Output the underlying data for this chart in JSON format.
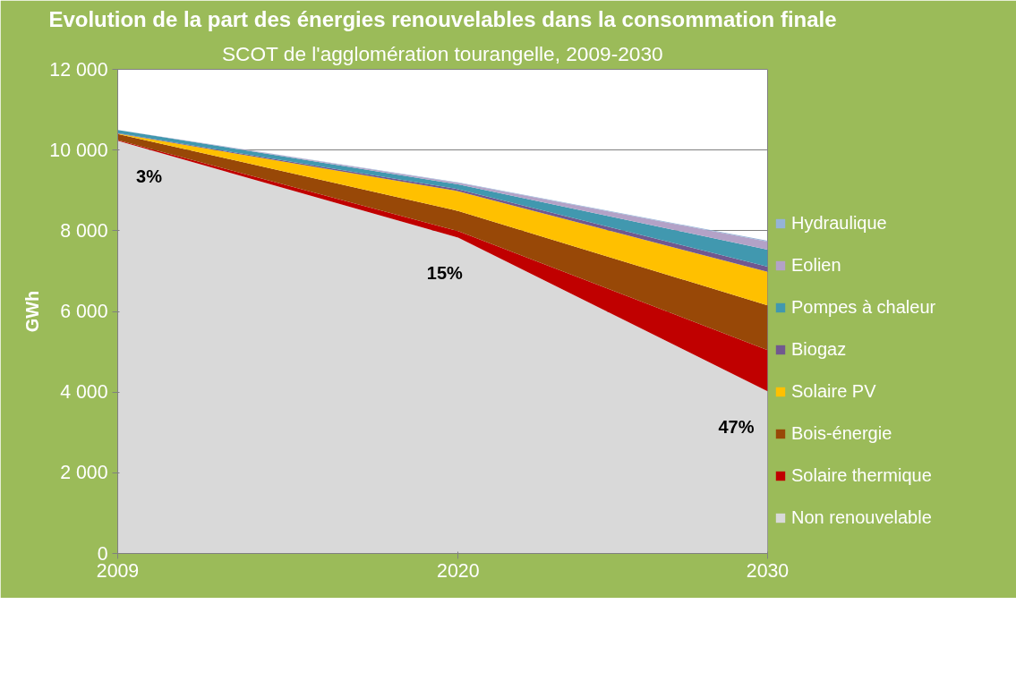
{
  "chart_data": {
    "type": "area",
    "stacked": true,
    "title": "Evolution de la part des énergies renouvelables dans la consommation finale",
    "subtitle": "SCOT de l'agglomération tourangelle, 2009-2030",
    "ylabel": "GWh",
    "x": [
      2009,
      2020,
      2030
    ],
    "xlim": [
      2009,
      2030
    ],
    "xticks": [
      2009,
      2020,
      2030
    ],
    "ylim": [
      0,
      12000
    ],
    "yticks": [
      {
        "value": 0,
        "label": "0"
      },
      {
        "value": 2000,
        "label": "2 000"
      },
      {
        "value": 4000,
        "label": "4 000"
      },
      {
        "value": 6000,
        "label": "6 000"
      },
      {
        "value": 8000,
        "label": "8 000"
      },
      {
        "value": 10000,
        "label": "10 000"
      },
      {
        "value": 12000,
        "label": "12 000"
      }
    ],
    "grid": "y",
    "legend": "right",
    "series": [
      {
        "name": "Non renouvelable",
        "color": "#d9d9d9",
        "values": [
          10230,
          7830,
          4020
        ]
      },
      {
        "name": "Solaire thermique",
        "color": "#c00000",
        "values": [
          20,
          160,
          1020
        ]
      },
      {
        "name": "Bois-énergie",
        "color": "#984807",
        "values": [
          150,
          500,
          1110
        ]
      },
      {
        "name": "Solaire PV",
        "color": "#ffc000",
        "values": [
          10,
          490,
          830
        ]
      },
      {
        "name": "Biogaz",
        "color": "#71588f",
        "values": [
          10,
          50,
          130
        ]
      },
      {
        "name": "Pompes à chaleur",
        "color": "#4198af",
        "values": [
          80,
          120,
          420
        ]
      },
      {
        "name": "Eolien",
        "color": "#b3a2c7",
        "values": [
          0,
          40,
          200
        ]
      },
      {
        "name": "Hydraulique",
        "color": "#95b3d7",
        "values": [
          0,
          10,
          20
        ]
      }
    ],
    "annotations": [
      "3%",
      "15%",
      "47%"
    ]
  }
}
